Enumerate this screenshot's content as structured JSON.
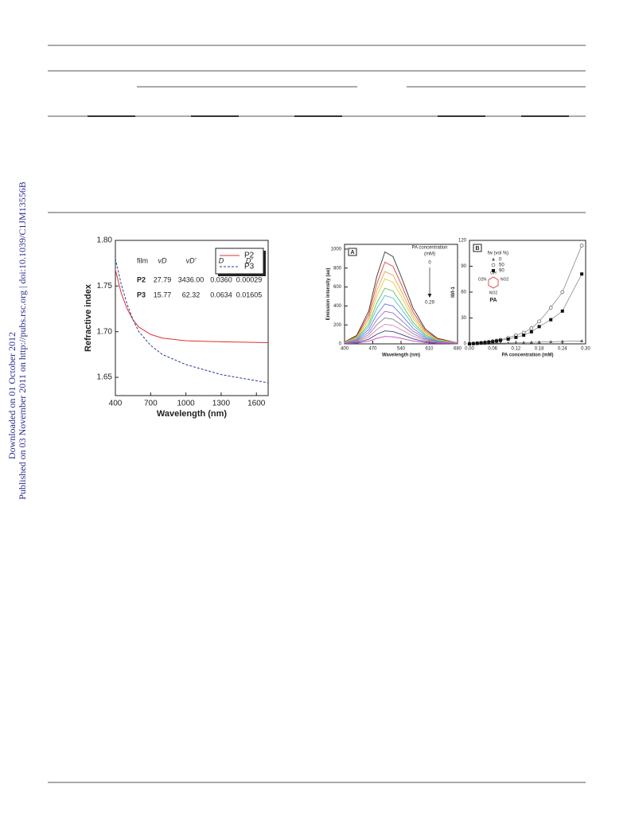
{
  "sidebar": {
    "downloaded": "Downloaded on 01 October 2012",
    "published": "Published on 03 November 2011 on http://pubs.rsc.org | doi:10.1039/C1JM13556B"
  },
  "chart_data": [
    {
      "type": "line",
      "x_label": "Wavelength (nm)",
      "y_label": "Refractive index",
      "x": [
        400,
        450,
        500,
        550,
        600,
        700,
        800,
        1000,
        1300,
        1700
      ],
      "xlim": [
        400,
        1700
      ],
      "xticks": [
        400,
        700,
        1000,
        1300,
        1600
      ],
      "ylim": [
        1.63,
        1.8
      ],
      "yticks": [
        {
          "value": 1.8,
          "label": "1.80"
        },
        1.75,
        {
          "value": 1.7,
          "label": "1.70"
        },
        1.65
      ],
      "series": [
        {
          "name": "P2",
          "color": "#e03030",
          "style": "solid",
          "values": [
            1.768,
            1.742,
            1.725,
            1.713,
            1.705,
            1.697,
            1.693,
            1.69,
            1.689,
            1.688
          ]
        },
        {
          "name": "P3",
          "color": "#2a3a9a",
          "style": "dashed",
          "values": [
            1.78,
            1.752,
            1.73,
            1.713,
            1.7,
            1.685,
            1.675,
            1.664,
            1.653,
            1.644
          ]
        }
      ],
      "legend": "upper right",
      "inset_table": {
        "header": [
          "film",
          "vD",
          "vD'",
          "D",
          "D'"
        ],
        "rows": [
          [
            "P2",
            "27.79",
            "3436.00",
            "0.0360",
            "0.00029"
          ],
          [
            "P3",
            "15.77",
            "62.32",
            "0.0634",
            "0.01605"
          ]
        ]
      }
    },
    {
      "type": "line",
      "panel": "A",
      "x_label": "Wavelength (nm)",
      "y_label": "Emission intensity (au)",
      "x": [
        400,
        430,
        460,
        480,
        500,
        520,
        540,
        570,
        600,
        630,
        680
      ],
      "xlim": [
        400,
        680
      ],
      "xticks": [
        400,
        470,
        540,
        610,
        680
      ],
      "ylim": [
        0,
        1050
      ],
      "yticks": [
        0,
        200,
        400,
        600,
        800,
        1000
      ],
      "annotations": [
        "PA concentration",
        "(mM)",
        "0",
        "0.29"
      ],
      "series": [
        {
          "color": "#333333",
          "values": [
            20,
            89,
            347,
            713,
            970,
            921,
            713,
            376,
            158,
            59,
            10
          ]
        },
        {
          "color": "#e04040",
          "values": [
            18,
            79,
            308,
            634,
            862,
            818,
            634,
            334,
            141,
            53,
            9
          ]
        },
        {
          "color": "#f0a040",
          "values": [
            16,
            70,
            273,
            562,
            764,
            725,
            562,
            296,
            125,
            47,
            8
          ]
        },
        {
          "color": "#d8d040",
          "values": [
            14,
            63,
            245,
            504,
            686,
            651,
            504,
            266,
            112,
            42,
            7
          ]
        },
        {
          "color": "#60c060",
          "values": [
            12,
            54,
            210,
            432,
            588,
            558,
            432,
            228,
            96,
            36,
            6
          ]
        },
        {
          "color": "#50c0d0",
          "values": [
            10,
            47,
            182,
            374,
            510,
            484,
            374,
            198,
            83,
            31,
            5
          ]
        },
        {
          "color": "#6080e0",
          "values": [
            9,
            39,
            151,
            310,
            421,
            400,
            310,
            163,
            69,
            26,
            4
          ]
        },
        {
          "color": "#a070d0",
          "values": [
            7,
            32,
            123,
            252,
            343,
            326,
            252,
            133,
            56,
            21,
            4
          ]
        },
        {
          "color": "#888888",
          "values": [
            6,
            25,
            98,
            202,
            274,
            260,
            202,
            106,
            45,
            17,
            3
          ]
        },
        {
          "color": "#e080b0",
          "values": [
            4,
            19,
            74,
            151,
            206,
            195,
            151,
            80,
            34,
            13,
            2
          ]
        },
        {
          "color": "#304090",
          "values": [
            3,
            13,
            49,
            101,
            137,
            130,
            101,
            53,
            22,
            8,
            1
          ]
        },
        {
          "color": "#c040c0",
          "values": [
            2,
            7,
            28,
            58,
            78,
            74,
            58,
            30,
            13,
            5,
            1
          ]
        }
      ]
    },
    {
      "type": "scatter",
      "panel": "B",
      "x_label": "PA concentration (mM)",
      "y_label": "I0/I-1",
      "x": [
        0,
        0.01,
        0.02,
        0.03,
        0.04,
        0.05,
        0.06,
        0.07,
        0.08,
        0.1,
        0.12,
        0.14,
        0.16,
        0.18,
        0.21,
        0.24,
        0.29
      ],
      "xlim": [
        0,
        0.3
      ],
      "xticks": [
        {
          "value": 0,
          "label": "0.00"
        },
        {
          "value": 0.06,
          "label": "0.06"
        },
        {
          "value": 0.12,
          "label": "0.12"
        },
        {
          "value": 0.18,
          "label": "0.18"
        },
        {
          "value": 0.24,
          "label": "0.24"
        },
        {
          "value": 0.3,
          "label": "0.30"
        }
      ],
      "ylim": [
        0,
        120
      ],
      "yticks": [
        0,
        30,
        60,
        90,
        120
      ],
      "legend_title": "fw (vol %)",
      "series": [
        {
          "name": "0",
          "color": "#555555",
          "marker": "triangle",
          "values": [
            0,
            0.1,
            0.2,
            0.3,
            0.4,
            0.5,
            0.6,
            0.7,
            0.8,
            1,
            1.2,
            1.5,
            1.8,
            2,
            2.4,
            2.8,
            3.4
          ]
        },
        {
          "name": "50",
          "color": "#555555",
          "marker": "circle",
          "values": [
            0,
            0.4,
            0.8,
            1.2,
            1.7,
            2.3,
            3,
            3.8,
            4.8,
            7,
            10,
            13,
            18,
            26,
            42,
            60,
            114
          ]
        },
        {
          "name": "90",
          "color": "#111111",
          "marker": "square",
          "values": [
            0,
            0.3,
            0.6,
            1,
            1.4,
            1.9,
            2.5,
            3.2,
            4,
            5.5,
            7.5,
            10,
            14,
            20,
            28,
            38,
            81
          ]
        }
      ],
      "structure": {
        "labels": [
          "OH",
          "O2N",
          "NO2",
          "NO2"
        ],
        "name": "PA",
        "color": "#d03030"
      }
    }
  ]
}
